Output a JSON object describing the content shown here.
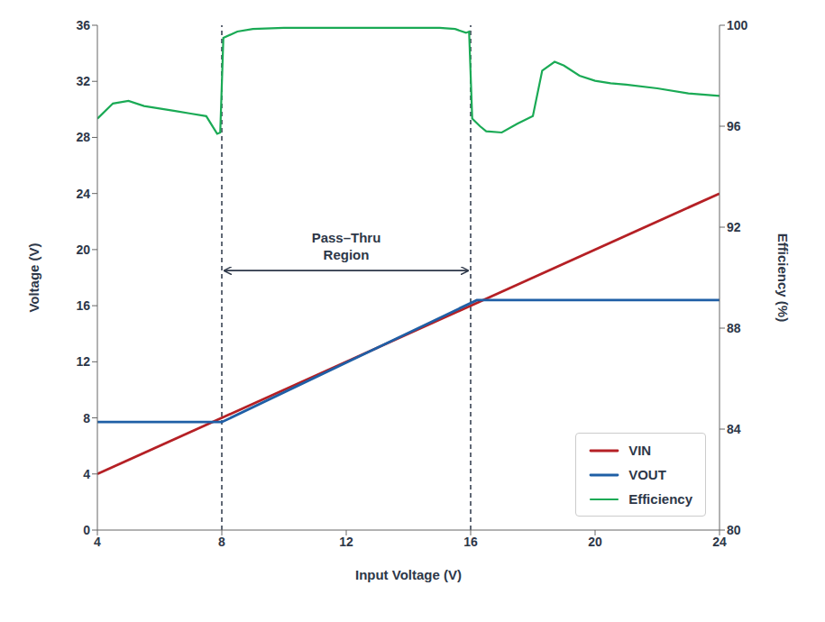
{
  "chart_data": {
    "type": "line",
    "xlabel": "Input Voltage (V)",
    "ylabel": "Voltage (V)",
    "y2label": "Efficiency (%)",
    "xlim": [
      4,
      24
    ],
    "ylim": [
      0,
      36
    ],
    "y2lim": [
      80,
      100
    ],
    "xticks": [
      4,
      8,
      12,
      16,
      20,
      24
    ],
    "yticks": [
      0,
      4,
      8,
      12,
      16,
      20,
      24,
      28,
      32,
      36
    ],
    "y2ticks": [
      80,
      84,
      88,
      92,
      96,
      100
    ],
    "grid": false,
    "legend": "lower right",
    "series": [
      {
        "name": "VIN",
        "color": "#b52025",
        "x": [
          4,
          24
        ],
        "values": [
          4,
          24
        ]
      },
      {
        "name": "VOUT",
        "color": "#1f5fa6",
        "x": [
          4,
          8.0,
          16.2,
          24
        ],
        "values": [
          7.7,
          7.7,
          16.4,
          16.4
        ]
      },
      {
        "name": "Efficiency",
        "color": "#1aaa55",
        "axis": "y2",
        "x": [
          4.0,
          4.5,
          5.0,
          5.5,
          6.0,
          6.5,
          7.0,
          7.5,
          7.85,
          7.95,
          8.05,
          8.5,
          9.0,
          10.0,
          11.0,
          12.0,
          13.0,
          14.0,
          15.0,
          15.5,
          15.85,
          15.95,
          16.05,
          16.3,
          16.5,
          17.0,
          17.5,
          18.0,
          18.3,
          18.7,
          19.0,
          19.5,
          20.0,
          20.5,
          21.0,
          22.0,
          23.0,
          24.0
        ],
        "values": [
          96.3,
          96.9,
          97.0,
          96.8,
          96.7,
          96.6,
          96.5,
          96.4,
          95.7,
          95.75,
          99.5,
          99.75,
          99.85,
          99.9,
          99.9,
          99.9,
          99.9,
          99.9,
          99.9,
          99.85,
          99.7,
          99.75,
          96.3,
          96.0,
          95.8,
          95.75,
          96.1,
          96.4,
          98.2,
          98.55,
          98.4,
          98.0,
          97.8,
          97.7,
          97.65,
          97.5,
          97.3,
          97.2
        ]
      }
    ],
    "annotations": [
      {
        "type": "vline",
        "x": 8.0,
        "color": "#2d3748",
        "line_style": "dashed"
      },
      {
        "type": "vline",
        "x": 16.0,
        "color": "#2d3748",
        "line_style": "dashed"
      },
      {
        "type": "arrow",
        "x": [
          8.0,
          16.0
        ],
        "y": 18.5,
        "color": "#2d3748",
        "text": "Pass–Thru\nRegion"
      }
    ]
  }
}
